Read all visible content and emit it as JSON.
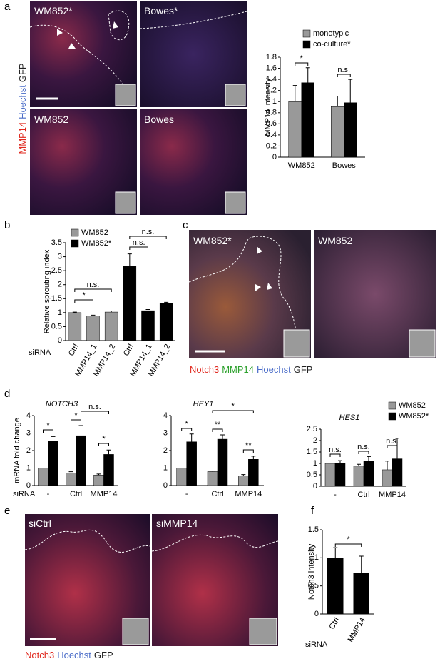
{
  "panels": [
    "a",
    "b",
    "c",
    "d",
    "e",
    "f"
  ],
  "images": {
    "a": {
      "labels": [
        "WM852*",
        "Bowes*",
        "WM852",
        "Bowes"
      ],
      "stains": [
        {
          "text": "MMP14",
          "color": "#e0281e"
        },
        {
          "text": "Hoechst",
          "color": "#4a6cc8"
        },
        {
          "text": "GFP",
          "color": "#222222"
        }
      ]
    },
    "c": {
      "labels": [
        "WM852*",
        "WM852"
      ],
      "stains": [
        {
          "text": "Notch3",
          "color": "#e0281e"
        },
        {
          "text": "MMP14",
          "color": "#2ca02c"
        },
        {
          "text": "Hoechst",
          "color": "#4a6cc8"
        },
        {
          "text": "GFP",
          "color": "#222222"
        }
      ]
    },
    "e": {
      "labels": [
        "siCtrl",
        "siMMP14"
      ],
      "stains": [
        {
          "text": "Notch3",
          "color": "#e0281e"
        },
        {
          "text": "Hoechst",
          "color": "#4a6cc8"
        },
        {
          "text": "GFP",
          "color": "#222222"
        }
      ]
    }
  },
  "chart_data": [
    {
      "type": "bar",
      "ylabel": "MMP14 intensity",
      "categories": [
        "WM852",
        "Bowes"
      ],
      "series": [
        {
          "name": "monotypic",
          "color": "#999999",
          "values": [
            1,
            0.91
          ],
          "errors": [
            0.29,
            0.19
          ]
        },
        {
          "name": "co-culture*",
          "color": "#000000",
          "values": [
            1.34,
            0.98
          ],
          "errors": [
            0.27,
            0.42
          ]
        }
      ],
      "ylim": [
        0,
        1.8
      ],
      "yticks": [
        0,
        0.2,
        0.4,
        0.6,
        0.8,
        1,
        1.2,
        1.4,
        1.6,
        1.8
      ],
      "legend": true,
      "annotations": [
        "*",
        "n.s."
      ]
    },
    {
      "type": "bar",
      "ylabel": "Relative sprouting index",
      "xlabel": "siRNA",
      "categories": [
        "Ctrl",
        "MMP14_1",
        "MMP14_2",
        "Ctrl",
        "MMP14_1",
        "MMP14_2"
      ],
      "series": [
        {
          "name": "WM852",
          "color": "#999999",
          "values": [
            1,
            0.88,
            1.02,
            null,
            null,
            null
          ],
          "errors": [
            0.02,
            0.03,
            0.04,
            null,
            null,
            null
          ]
        },
        {
          "name": "WM852*",
          "color": "#000000",
          "values": [
            null,
            null,
            null,
            2.65,
            1.07,
            1.33
          ],
          "errors": [
            null,
            null,
            null,
            0.45,
            0.04,
            0.04
          ]
        }
      ],
      "ylim": [
        0,
        3.5
      ],
      "yticks": [
        0,
        0.5,
        1,
        1.5,
        2,
        2.5,
        3,
        3.5
      ],
      "legend": true,
      "annotations": [
        "*",
        "n.s.",
        "n.s.",
        "n.s."
      ]
    },
    {
      "type": "bar",
      "title": "NOTCH3",
      "ylabel": "mRNA fold change",
      "xlabel": "siRNA",
      "categories": [
        "-",
        "Ctrl",
        "MMP14"
      ],
      "series": [
        {
          "name": "WM852",
          "color": "#999999",
          "values": [
            1,
            0.72,
            0.6
          ],
          "errors": [
            null,
            0.07,
            0.06
          ]
        },
        {
          "name": "WM852*",
          "color": "#000000",
          "values": [
            2.55,
            2.85,
            1.78
          ],
          "errors": [
            0.25,
            0.58,
            0.25
          ]
        }
      ],
      "ylim": [
        0,
        4
      ],
      "yticks": [
        0,
        1,
        2,
        3,
        4
      ],
      "legend": false,
      "annotations": [
        "*",
        "*",
        "*",
        "n.s."
      ]
    },
    {
      "type": "bar",
      "title": "HEY1",
      "categories": [
        "-",
        "Ctrl",
        "MMP14"
      ],
      "series": [
        {
          "name": "WM852",
          "color": "#999999",
          "values": [
            1,
            0.8,
            0.55
          ],
          "errors": [
            null,
            0.03,
            0.08
          ]
        },
        {
          "name": "WM852*",
          "color": "#000000",
          "values": [
            2.5,
            2.65,
            1.5
          ],
          "errors": [
            0.45,
            0.25,
            0.18
          ]
        }
      ],
      "ylim": [
        0,
        4
      ],
      "yticks": [
        0,
        1,
        2,
        3,
        4
      ],
      "legend": false,
      "annotations": [
        "*",
        "**",
        "**",
        "*"
      ]
    },
    {
      "type": "bar",
      "title": "HES1",
      "categories": [
        "-",
        "Ctrl",
        "MMP14"
      ],
      "series": [
        {
          "name": "WM852",
          "color": "#999999",
          "values": [
            1,
            0.88,
            0.72
          ],
          "errors": [
            null,
            0.08,
            0.38
          ]
        },
        {
          "name": "WM852*",
          "color": "#000000",
          "values": [
            1,
            1.1,
            1.2
          ],
          "errors": [
            0.12,
            0.2,
            0.9
          ]
        }
      ],
      "ylim": [
        0,
        2.5
      ],
      "yticks": [
        0,
        0.5,
        1,
        1.5,
        2,
        2.5
      ],
      "legend": true,
      "annotations": [
        "n.s.",
        "n.s.",
        "n.s."
      ]
    },
    {
      "type": "bar",
      "ylabel": "Notch3 intensity",
      "xlabel": "siRNA",
      "categories": [
        "Ctrl",
        "MMP14"
      ],
      "color": "#000000",
      "values": [
        1,
        0.73
      ],
      "errors": [
        0.18,
        0.3
      ],
      "ylim": [
        0,
        1.5
      ],
      "yticks": [
        0,
        0.5,
        1,
        1.5
      ],
      "legend": false,
      "annotations": [
        "*"
      ]
    }
  ]
}
